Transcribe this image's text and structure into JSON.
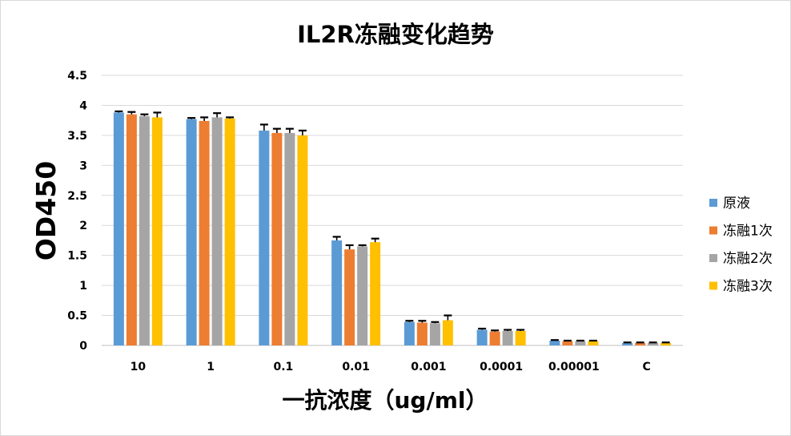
{
  "chart_data": {
    "type": "bar",
    "title": "IL2R冻融变化趋势",
    "xlabel": "一抗浓度（ug/ml）",
    "ylabel": "OD450",
    "ylim": [
      0,
      4.5
    ],
    "ytick_step": 0.5,
    "yticks": [
      "0",
      "0.5",
      "1",
      "1.5",
      "2",
      "2.5",
      "3",
      "3.5",
      "4",
      "4.5"
    ],
    "categories": [
      "10",
      "1",
      "0.1",
      "0.01",
      "0.001",
      "0.0001",
      "0.00001",
      "C"
    ],
    "grid": true,
    "legend_position": "right",
    "series": [
      {
        "name": "原液",
        "color": "#5B9BD5",
        "values": [
          3.88,
          3.77,
          3.58,
          1.75,
          0.39,
          0.26,
          0.08,
          0.04
        ],
        "errors": [
          0.02,
          0.02,
          0.1,
          0.06,
          0.02,
          0.02,
          0.01,
          0.01
        ]
      },
      {
        "name": "冻融1次",
        "color": "#ED7D31",
        "values": [
          3.85,
          3.74,
          3.54,
          1.6,
          0.38,
          0.23,
          0.07,
          0.04
        ],
        "errors": [
          0.04,
          0.06,
          0.07,
          0.07,
          0.03,
          0.02,
          0.01,
          0.01
        ]
      },
      {
        "name": "冻融2次",
        "color": "#A5A5A5",
        "values": [
          3.82,
          3.8,
          3.54,
          1.65,
          0.37,
          0.24,
          0.07,
          0.04
        ],
        "errors": [
          0.03,
          0.07,
          0.07,
          0.02,
          0.02,
          0.02,
          0.01,
          0.01
        ]
      },
      {
        "name": "冻融3次",
        "color": "#FFC000",
        "values": [
          3.8,
          3.78,
          3.5,
          1.72,
          0.42,
          0.24,
          0.07,
          0.04
        ],
        "errors": [
          0.08,
          0.02,
          0.08,
          0.06,
          0.08,
          0.02,
          0.01,
          0.01
        ]
      }
    ]
  }
}
